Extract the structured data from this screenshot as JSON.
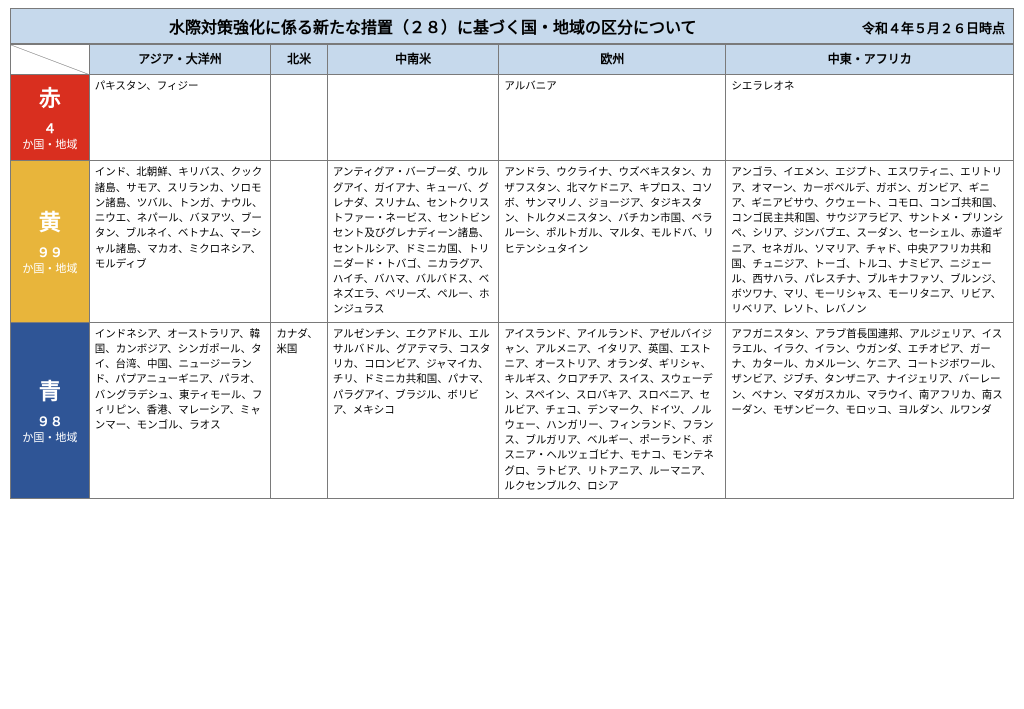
{
  "title": "水際対策強化に係る新たな措置（２８）に基づく国・地域の区分について",
  "date": "令和４年５月２６日時点",
  "headers": {
    "asia": "アジア・大洋州",
    "na": "北米",
    "la": "中南米",
    "eu": "欧州",
    "me": "中東・アフリカ"
  },
  "rows": [
    {
      "label": "赤",
      "count_num": "４",
      "count_unit": "か国・地域",
      "bg": "#d92f1f",
      "asia": "パキスタン、フィジー",
      "na": "",
      "la": "",
      "eu": "アルバニア",
      "me": "シエラレオネ"
    },
    {
      "label": "黄",
      "count_num": "９９",
      "count_unit": "か国・地域",
      "bg": "#e8b53b",
      "asia": "インド、北朝鮮、キリバス、クック諸島、サモア、スリランカ、ソロモン諸島、ツバル、トンガ、ナウル、ニウエ、ネパール、バヌアツ、ブータン、ブルネイ、ベトナム、マーシャル諸島、マカオ、ミクロネシア、モルディブ",
      "na": "",
      "la": "アンティグア・バーブーダ、ウルグアイ、ガイアナ、キューバ、グレナダ、スリナム、セントクリストファー・ネービス、セントビンセント及びグレナディーン諸島、セントルシア、ドミニカ国、トリニダード・トバゴ、ニカラグア、ハイチ、バハマ、バルバドス、ベネズエラ、ベリーズ、ペルー、ホンジュラス",
      "eu": "アンドラ、ウクライナ、ウズベキスタン、カザフスタン、北マケドニア、キプロス、コソボ、サンマリノ、ジョージア、タジキスタン、トルクメニスタン、バチカン市国、ベラルーシ、ポルトガル、マルタ、モルドバ、リヒテンシュタイン",
      "me": "アンゴラ、イエメン、エジプト、エスワティニ、エリトリア、オマーン、カーボベルデ、ガボン、ガンビア、ギニア、ギニアビサウ、クウェート、コモロ、コンゴ共和国、コンゴ民主共和国、サウジアラビア、サントメ・プリンシペ、シリア、ジンバブエ、スーダン、セーシェル、赤道ギニア、セネガル、ソマリア、チャド、中央アフリカ共和国、チュニジア、トーゴ、トルコ、ナミビア、ニジェール、西サハラ、パレスチナ、ブルキナファソ、ブルンジ、ボツワナ、マリ、モーリシャス、モーリタニア、リビア、リベリア、レソト、レバノン"
    },
    {
      "label": "青",
      "count_num": "９８",
      "count_unit": "か国・地域",
      "bg": "#2f5596",
      "asia": "インドネシア、オーストラリア、韓国、カンボジア、シンガポール、タイ、台湾、中国、ニュージーランド、パプアニューギニア、パラオ、バングラデシュ、東ティモール、フィリピン、香港、マレーシア、ミャンマー、モンゴル、ラオス",
      "na": "カナダ、米国",
      "la": "アルゼンチン、エクアドル、エルサルバドル、グアテマラ、コスタリカ、コロンビア、ジャマイカ、チリ、ドミニカ共和国、パナマ、パラグアイ、ブラジル、ボリビア、メキシコ",
      "eu": "アイスランド、アイルランド、アゼルバイジャン、アルメニア、イタリア、英国、エストニア、オーストリア、オランダ、ギリシャ、キルギス、クロアチア、スイス、スウェーデン、スペイン、スロバキア、スロベニア、セルビア、チェコ、デンマーク、ドイツ、ノルウェー、ハンガリー、フィンランド、フランス、ブルガリア、ベルギー、ポーランド、ボスニア・ヘルツェゴビナ、モナコ、モンテネグロ、ラトビア、リトアニア、ルーマニア、ルクセンブルク、ロシア",
      "me": "アフガニスタン、アラブ首長国連邦、アルジェリア、イスラエル、イラク、イラン、ウガンダ、エチオピア、ガーナ、カタール、カメルーン、ケニア、コートジボワール、ザンビア、ジブチ、タンザニア、ナイジェリア、バーレーン、ベナン、マダガスカル、マラウイ、南アフリカ、南スーダン、モザンビーク、モロッコ、ヨルダン、ルワンダ"
    }
  ]
}
